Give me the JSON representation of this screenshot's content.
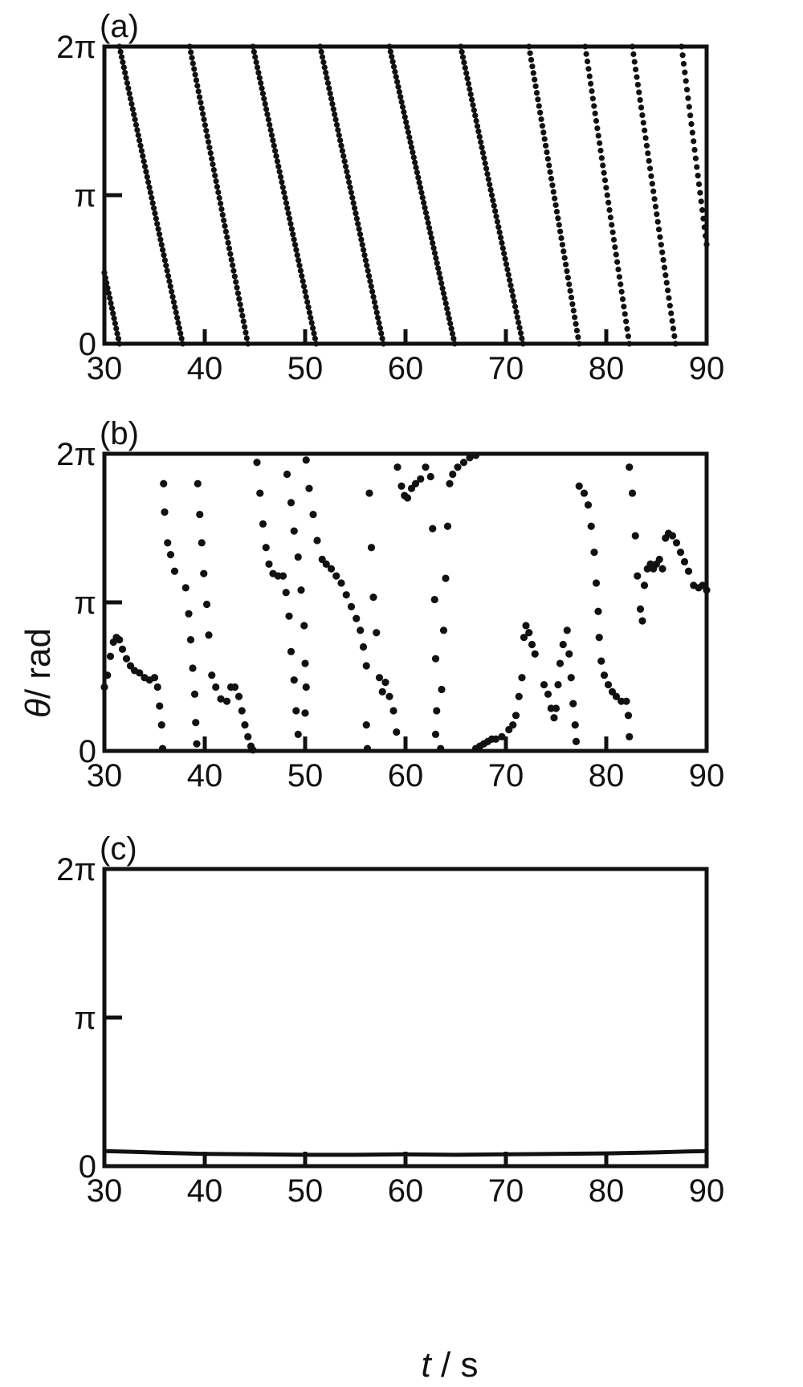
{
  "chart_data": [
    {
      "type": "scatter",
      "panel_label": "(a)",
      "xlim": [
        30,
        90
      ],
      "ylim_rad": [
        0,
        6.283185
      ],
      "x_ticks": [
        30,
        40,
        50,
        60,
        70,
        80,
        90
      ],
      "x_tick_labels": [
        "30",
        "40",
        "50",
        "60",
        "70",
        "80",
        "90"
      ],
      "y_ticks_rad": [
        0,
        3.141593,
        6.283185
      ],
      "y_tick_labels": [
        "0",
        "π",
        "2π"
      ],
      "segments": [
        {
          "t0": 30.0,
          "theta0": 1.5,
          "t1": 31.5,
          "theta1": 0.0
        },
        {
          "t0": 31.5,
          "theta0": 6.283,
          "t1": 37.8,
          "theta1": 0.0
        },
        {
          "t0": 38.5,
          "theta0": 6.283,
          "t1": 44.3,
          "theta1": 0.0
        },
        {
          "t0": 44.8,
          "theta0": 6.283,
          "t1": 51.1,
          "theta1": 0.0
        },
        {
          "t0": 51.5,
          "theta0": 6.283,
          "t1": 57.8,
          "theta1": 0.0
        },
        {
          "t0": 58.4,
          "theta0": 6.283,
          "t1": 64.9,
          "theta1": 0.0
        },
        {
          "t0": 65.5,
          "theta0": 6.283,
          "t1": 71.7,
          "theta1": 0.0
        },
        {
          "t0": 72.3,
          "theta0": 6.283,
          "t1": 77.3,
          "theta1": 0.0
        },
        {
          "t0": 77.9,
          "theta0": 6.283,
          "t1": 82.3,
          "theta1": 0.0
        },
        {
          "t0": 82.6,
          "theta0": 6.283,
          "t1": 86.9,
          "theta1": 0.0
        },
        {
          "t0": 87.5,
          "theta0": 6.283,
          "t1": 90.0,
          "theta1": 2.1
        }
      ]
    },
    {
      "type": "scatter",
      "panel_label": "(b)",
      "xlim": [
        30,
        90
      ],
      "ylim_rad": [
        0,
        6.283185
      ],
      "x_ticks": [
        30,
        40,
        50,
        60,
        70,
        80,
        90
      ],
      "x_tick_labels": [
        "30",
        "40",
        "50",
        "60",
        "70",
        "80",
        "90"
      ],
      "y_ticks_rad": [
        0,
        3.141593,
        6.283185
      ],
      "y_tick_labels": [
        "0",
        "π",
        "2π"
      ],
      "ylabel_italic": "θ",
      "ylabel_rest": "/ rad",
      "points": [
        [
          30.0,
          1.35
        ],
        [
          30.3,
          1.6
        ],
        [
          30.6,
          2.0
        ],
        [
          30.9,
          2.3
        ],
        [
          31.2,
          2.4
        ],
        [
          31.5,
          2.35
        ],
        [
          31.8,
          2.15
        ],
        [
          32.2,
          1.95
        ],
        [
          32.6,
          1.8
        ],
        [
          33.0,
          1.7
        ],
        [
          33.5,
          1.65
        ],
        [
          34.0,
          1.55
        ],
        [
          34.5,
          1.5
        ],
        [
          35.0,
          1.55
        ],
        [
          35.3,
          1.35
        ],
        [
          35.5,
          0.95
        ],
        [
          35.7,
          0.55
        ],
        [
          35.8,
          0.05
        ],
        [
          35.9,
          5.65
        ],
        [
          36.0,
          5.05
        ],
        [
          36.3,
          4.4
        ],
        [
          36.6,
          4.15
        ],
        [
          37.0,
          3.8
        ],
        [
          38.1,
          3.45
        ],
        [
          38.4,
          2.9
        ],
        [
          38.6,
          2.35
        ],
        [
          38.8,
          1.75
        ],
        [
          39.0,
          1.2
        ],
        [
          39.1,
          0.6
        ],
        [
          39.2,
          0.15
        ],
        [
          39.3,
          5.65
        ],
        [
          39.5,
          5.0
        ],
        [
          39.7,
          4.4
        ],
        [
          39.9,
          3.75
        ],
        [
          40.2,
          3.1
        ],
        [
          40.4,
          2.45
        ],
        [
          40.7,
          1.6
        ],
        [
          41.1,
          1.35
        ],
        [
          41.6,
          1.1
        ],
        [
          42.2,
          1.05
        ],
        [
          42.6,
          1.35
        ],
        [
          43.0,
          1.35
        ],
        [
          43.4,
          1.15
        ],
        [
          43.7,
          0.85
        ],
        [
          44.0,
          0.55
        ],
        [
          44.3,
          0.3
        ],
        [
          44.6,
          0.1
        ],
        [
          44.8,
          0.02
        ],
        [
          45.2,
          6.1
        ],
        [
          45.5,
          5.45
        ],
        [
          45.8,
          4.8
        ],
        [
          46.1,
          4.3
        ],
        [
          46.4,
          3.95
        ],
        [
          46.8,
          3.75
        ],
        [
          47.3,
          3.7
        ],
        [
          47.8,
          3.7
        ],
        [
          48.1,
          3.35
        ],
        [
          48.4,
          2.85
        ],
        [
          48.6,
          2.1
        ],
        [
          48.9,
          1.5
        ],
        [
          49.1,
          0.85
        ],
        [
          49.3,
          0.35
        ],
        [
          48.2,
          5.85
        ],
        [
          48.6,
          5.25
        ],
        [
          48.9,
          4.65
        ],
        [
          49.3,
          4.1
        ],
        [
          49.6,
          3.4
        ],
        [
          49.9,
          2.65
        ],
        [
          50.0,
          1.85
        ],
        [
          50.1,
          1.35
        ],
        [
          50.0,
          0.8
        ],
        [
          50.1,
          6.15
        ],
        [
          50.4,
          5.55
        ],
        [
          50.8,
          5.0
        ],
        [
          51.2,
          4.45
        ],
        [
          51.7,
          4.05
        ],
        [
          52.1,
          3.95
        ],
        [
          52.6,
          3.85
        ],
        [
          53.1,
          3.7
        ],
        [
          53.6,
          3.55
        ],
        [
          54.1,
          3.3
        ],
        [
          54.6,
          3.05
        ],
        [
          55.1,
          2.8
        ],
        [
          55.5,
          2.55
        ],
        [
          55.8,
          2.2
        ],
        [
          56.1,
          1.8
        ],
        [
          56.1,
          0.55
        ],
        [
          56.2,
          0.05
        ],
        [
          56.4,
          5.45
        ],
        [
          56.6,
          4.3
        ],
        [
          56.8,
          3.25
        ],
        [
          57.1,
          2.5
        ],
        [
          57.4,
          1.55
        ],
        [
          57.7,
          1.25
        ],
        [
          58.0,
          1.45
        ],
        [
          58.4,
          1.15
        ],
        [
          58.8,
          0.85
        ],
        [
          59.1,
          0.4
        ],
        [
          59.2,
          6.0
        ],
        [
          59.6,
          5.6
        ],
        [
          59.9,
          5.4
        ],
        [
          60.2,
          5.35
        ],
        [
          60.6,
          5.55
        ],
        [
          61.0,
          5.65
        ],
        [
          61.5,
          5.75
        ],
        [
          62.0,
          6.0
        ],
        [
          62.5,
          5.8
        ],
        [
          62.7,
          4.7
        ],
        [
          62.9,
          3.2
        ],
        [
          63.0,
          1.95
        ],
        [
          63.1,
          0.85
        ],
        [
          63.0,
          0.35
        ],
        [
          63.5,
          0.05
        ],
        [
          63.6,
          1.3
        ],
        [
          63.8,
          2.55
        ],
        [
          64.0,
          3.65
        ],
        [
          64.2,
          4.75
        ],
        [
          64.4,
          5.65
        ],
        [
          64.7,
          5.85
        ],
        [
          65.2,
          6.0
        ],
        [
          65.8,
          6.1
        ],
        [
          66.4,
          6.2
        ],
        [
          67.0,
          6.25
        ],
        [
          67.0,
          0.05
        ],
        [
          67.4,
          0.1
        ],
        [
          67.8,
          0.15
        ],
        [
          68.2,
          0.2
        ],
        [
          68.6,
          0.25
        ],
        [
          69.0,
          0.25
        ],
        [
          69.6,
          0.3
        ],
        [
          70.3,
          0.45
        ],
        [
          70.7,
          0.55
        ],
        [
          71.0,
          0.75
        ],
        [
          71.3,
          1.15
        ],
        [
          71.6,
          1.55
        ],
        [
          71.8,
          2.4
        ],
        [
          72.0,
          2.65
        ],
        [
          72.3,
          2.5
        ],
        [
          72.6,
          2.25
        ],
        [
          72.9,
          2.05
        ],
        [
          73.8,
          1.4
        ],
        [
          74.2,
          1.2
        ],
        [
          74.5,
          0.9
        ],
        [
          74.8,
          0.7
        ],
        [
          75.0,
          0.9
        ],
        [
          75.2,
          1.4
        ],
        [
          75.4,
          1.85
        ],
        [
          75.7,
          2.25
        ],
        [
          76.1,
          2.55
        ],
        [
          76.3,
          2.05
        ],
        [
          76.5,
          1.55
        ],
        [
          76.7,
          1.0
        ],
        [
          76.9,
          0.55
        ],
        [
          77.0,
          0.2
        ],
        [
          77.3,
          5.6
        ],
        [
          77.8,
          5.45
        ],
        [
          78.2,
          5.2
        ],
        [
          78.5,
          4.75
        ],
        [
          78.8,
          4.2
        ],
        [
          79.0,
          3.55
        ],
        [
          79.2,
          2.95
        ],
        [
          79.3,
          2.4
        ],
        [
          79.5,
          1.9
        ],
        [
          79.8,
          1.6
        ],
        [
          80.2,
          1.4
        ],
        [
          80.6,
          1.25
        ],
        [
          81.0,
          1.15
        ],
        [
          81.5,
          1.05
        ],
        [
          82.0,
          1.05
        ],
        [
          82.2,
          0.75
        ],
        [
          82.3,
          0.3
        ],
        [
          82.3,
          6.0
        ],
        [
          82.6,
          5.45
        ],
        [
          82.9,
          4.55
        ],
        [
          83.1,
          3.7
        ],
        [
          83.4,
          3.0
        ],
        [
          83.6,
          2.75
        ],
        [
          83.8,
          3.5
        ],
        [
          84.1,
          3.85
        ],
        [
          84.4,
          3.95
        ],
        [
          84.7,
          3.85
        ],
        [
          85.0,
          3.95
        ],
        [
          85.3,
          4.05
        ],
        [
          85.6,
          3.85
        ],
        [
          85.9,
          4.5
        ],
        [
          86.2,
          4.6
        ],
        [
          86.6,
          4.55
        ],
        [
          87.0,
          4.4
        ],
        [
          87.4,
          4.2
        ],
        [
          87.8,
          4.0
        ],
        [
          88.2,
          3.8
        ],
        [
          88.7,
          3.5
        ],
        [
          89.2,
          3.45
        ],
        [
          89.6,
          3.5
        ],
        [
          90.0,
          3.4
        ]
      ]
    },
    {
      "type": "line",
      "panel_label": "(c)",
      "xlim": [
        30,
        90
      ],
      "ylim_rad": [
        0,
        6.283185
      ],
      "x_ticks": [
        30,
        40,
        50,
        60,
        70,
        80,
        90
      ],
      "x_tick_labels": [
        "30",
        "40",
        "50",
        "60",
        "70",
        "80",
        "90"
      ],
      "y_ticks_rad": [
        0,
        3.141593,
        6.283185
      ],
      "y_tick_labels": [
        "0",
        "π",
        "2π"
      ],
      "xlabel_italic": "t",
      "xlabel_rest": " / s",
      "series": [
        {
          "x": [
            30,
            33,
            36,
            40,
            45,
            50,
            55,
            60,
            65,
            70,
            75,
            80,
            85,
            88,
            90
          ],
          "y": [
            0.32,
            0.3,
            0.28,
            0.26,
            0.25,
            0.24,
            0.24,
            0.25,
            0.24,
            0.25,
            0.26,
            0.27,
            0.29,
            0.31,
            0.32
          ]
        }
      ]
    }
  ]
}
